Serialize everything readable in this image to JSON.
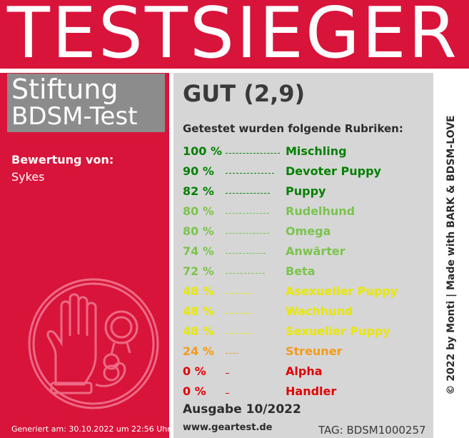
{
  "header": {
    "title": "TESTSIEGER"
  },
  "org": {
    "line1": "Stiftung",
    "line2": "BDSM-Test"
  },
  "rater": {
    "label": "Bewertung von:",
    "name": "Sykes"
  },
  "generated": "Generiert am: 30.10.2022 um 22:56 Uhr",
  "verdict": "GUT (2,9)",
  "intro": "Getestet wurden folgende Rubriken:",
  "rows": [
    {
      "pct": "100 %",
      "label": "Mischling",
      "color": "#008000",
      "value": 100
    },
    {
      "pct": "90 %",
      "label": "Devoter Puppy",
      "color": "#008000",
      "value": 90
    },
    {
      "pct": "82 %",
      "label": "Puppy",
      "color": "#008000",
      "value": 82
    },
    {
      "pct": "80 %",
      "label": "Rudelhund",
      "color": "#7bc44b",
      "value": 80
    },
    {
      "pct": "80 %",
      "label": "Omega",
      "color": "#7bc44b",
      "value": 80
    },
    {
      "pct": "74 %",
      "label": "Anwärter",
      "color": "#7bc44b",
      "value": 74
    },
    {
      "pct": "72 %",
      "label": "Beta",
      "color": "#7bc44b",
      "value": 72
    },
    {
      "pct": "48 %",
      "label": "Asexueller Puppy",
      "color": "#e8e800",
      "value": 48
    },
    {
      "pct": "48 %",
      "label": "Wachhund",
      "color": "#e8e800",
      "value": 48
    },
    {
      "pct": "48 %",
      "label": "Sexueller Puppy",
      "color": "#e8e800",
      "value": 48
    },
    {
      "pct": "24 %",
      "label": "Streuner",
      "color": "#f39b1a",
      "value": 24
    },
    {
      "pct": "0 %",
      "label": "Alpha",
      "color": "#e00000",
      "value": 0
    },
    {
      "pct": "0 %",
      "label": "Handler",
      "color": "#e00000",
      "value": 0
    }
  ],
  "edition": "Ausgabe 10/2022",
  "website": "www.geartest.de",
  "tag": "TAG: BDSM1000257",
  "credit": "© 2022 by Monti | Made with BARK & BDSM-LOVE",
  "seal_icon": "hand-handcuffs-icon"
}
